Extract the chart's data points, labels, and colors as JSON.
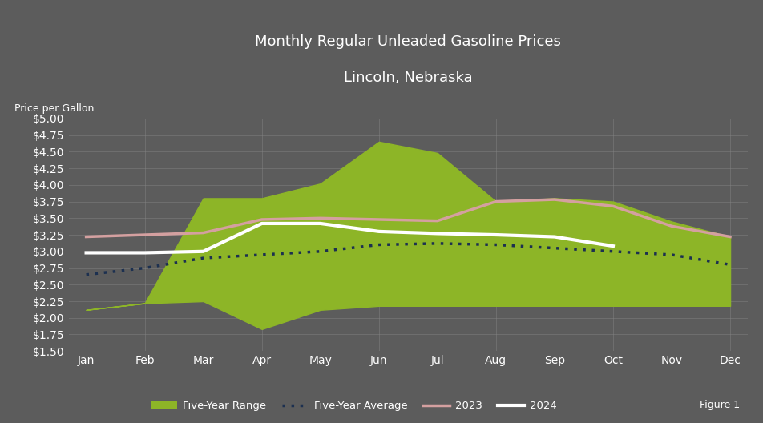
{
  "title_line1": "Monthly Regular Unleaded Gasoline Prices",
  "title_line2": "Lincoln, Nebraska",
  "ylabel": "Price per Gallon",
  "background_color": "#5c5c5c",
  "plot_bg_color": "#5c5c5c",
  "months": [
    "Jan",
    "Feb",
    "Mar",
    "Apr",
    "May",
    "Jun",
    "Jul",
    "Aug",
    "Sep",
    "Oct",
    "Nov",
    "Dec"
  ],
  "five_year_high": [
    2.12,
    2.22,
    3.8,
    3.8,
    4.02,
    4.65,
    4.48,
    3.75,
    3.8,
    3.75,
    3.45,
    3.22
  ],
  "five_year_low": [
    2.12,
    2.22,
    2.25,
    1.83,
    2.12,
    2.18,
    2.18,
    2.18,
    2.18,
    2.18,
    2.18,
    2.18
  ],
  "five_year_avg": [
    2.65,
    2.75,
    2.9,
    2.95,
    3.0,
    3.1,
    3.12,
    3.1,
    3.05,
    3.0,
    2.95,
    2.8
  ],
  "price_2023": [
    3.22,
    3.25,
    3.28,
    3.48,
    3.5,
    3.48,
    3.46,
    3.75,
    3.78,
    3.68,
    3.38,
    3.22
  ],
  "price_2024": [
    2.98,
    2.98,
    3.0,
    3.42,
    3.42,
    3.3,
    3.27,
    3.25,
    3.22,
    3.08,
    null,
    null
  ],
  "ylim": [
    1.5,
    5.0
  ],
  "yticks": [
    1.5,
    1.75,
    2.0,
    2.25,
    2.5,
    2.75,
    3.0,
    3.25,
    3.5,
    3.75,
    4.0,
    4.25,
    4.5,
    4.75,
    5.0
  ],
  "fill_color": "#8db527",
  "fill_alpha": 1.0,
  "avg_color": "#1c3050",
  "line_2023_color": "#d4a0a0",
  "line_2024_color": "#ffffff",
  "grid_color": "#888888",
  "text_color": "#ffffff",
  "figure_label": "Figure 1"
}
